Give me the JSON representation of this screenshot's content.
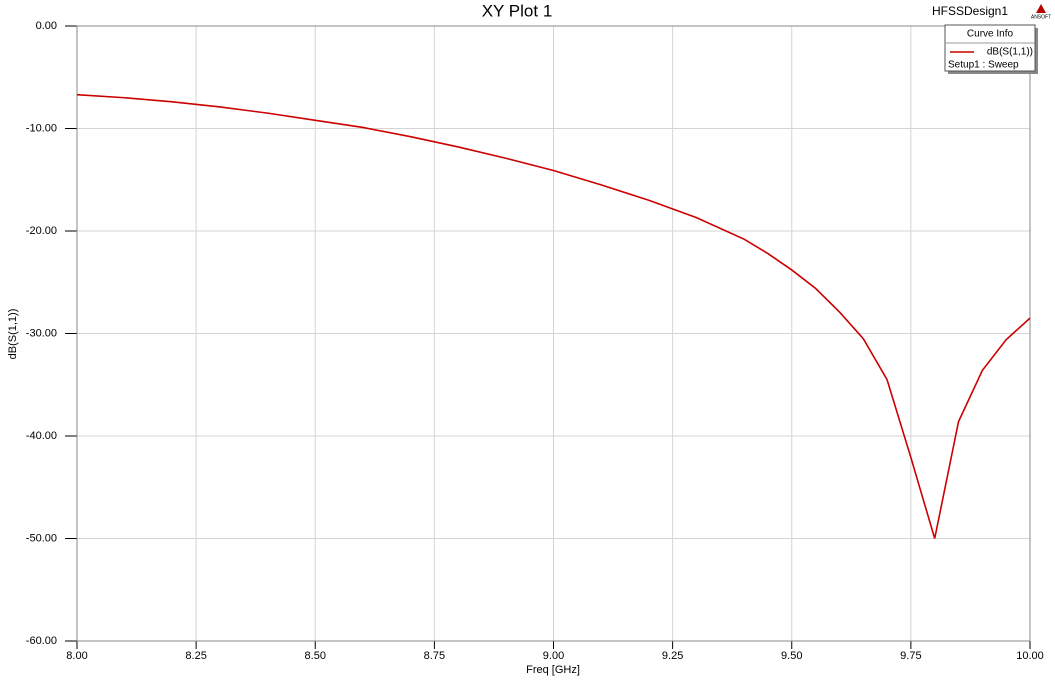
{
  "chart_data": {
    "type": "line",
    "title": "XY Plot 1",
    "design_name": "HFSSDesign1",
    "logo_text": "ANSOFT",
    "x_label": "Freq [GHz]",
    "y_label": "dB(S(1,1))",
    "legend_title": "Curve Info",
    "legend_position": "top-right",
    "grid": true,
    "x": [
      8.0,
      8.1,
      8.2,
      8.3,
      8.4,
      8.5,
      8.6,
      8.7,
      8.8,
      8.9,
      9.0,
      9.1,
      9.2,
      9.3,
      9.4,
      9.45,
      9.5,
      9.55,
      9.6,
      9.65,
      9.7,
      9.75,
      9.8,
      9.85,
      9.9,
      9.95,
      10.0
    ],
    "series": [
      {
        "name": "dB(S(1,1))",
        "solution": "Setup1 : Sweep",
        "color": "#cc0000",
        "values": [
          -6.7,
          -7.0,
          -7.4,
          -7.9,
          -8.5,
          -9.2,
          -9.9,
          -10.8,
          -11.8,
          -12.9,
          -14.1,
          -15.5,
          -17.0,
          -18.7,
          -20.8,
          -22.2,
          -23.8,
          -25.6,
          -27.9,
          -30.5,
          -34.5,
          -42.1,
          -50.0,
          -38.6,
          -33.6,
          -30.6,
          -28.5
        ]
      }
    ],
    "xlim": [
      8.0,
      10.0
    ],
    "ylim": [
      -60,
      0
    ],
    "xticks": [
      {
        "value": 8.0,
        "label": "8.00"
      },
      {
        "value": 8.25,
        "label": "8.25"
      },
      {
        "value": 8.5,
        "label": "8.50"
      },
      {
        "value": 8.75,
        "label": "8.75"
      },
      {
        "value": 9.0,
        "label": "9.00"
      },
      {
        "value": 9.25,
        "label": "9.25"
      },
      {
        "value": 9.5,
        "label": "9.50"
      },
      {
        "value": 9.75,
        "label": "9.75"
      },
      {
        "value": 10.0,
        "label": "10.00"
      }
    ],
    "yticks": [
      {
        "value": 0,
        "label": "0.00"
      },
      {
        "value": -10,
        "label": "-10.00"
      },
      {
        "value": -20,
        "label": "-20.00"
      },
      {
        "value": -30,
        "label": "-30.00"
      },
      {
        "value": -40,
        "label": "-40.00"
      },
      {
        "value": -50,
        "label": "-50.00"
      },
      {
        "value": -60,
        "label": "-60.00"
      }
    ]
  }
}
